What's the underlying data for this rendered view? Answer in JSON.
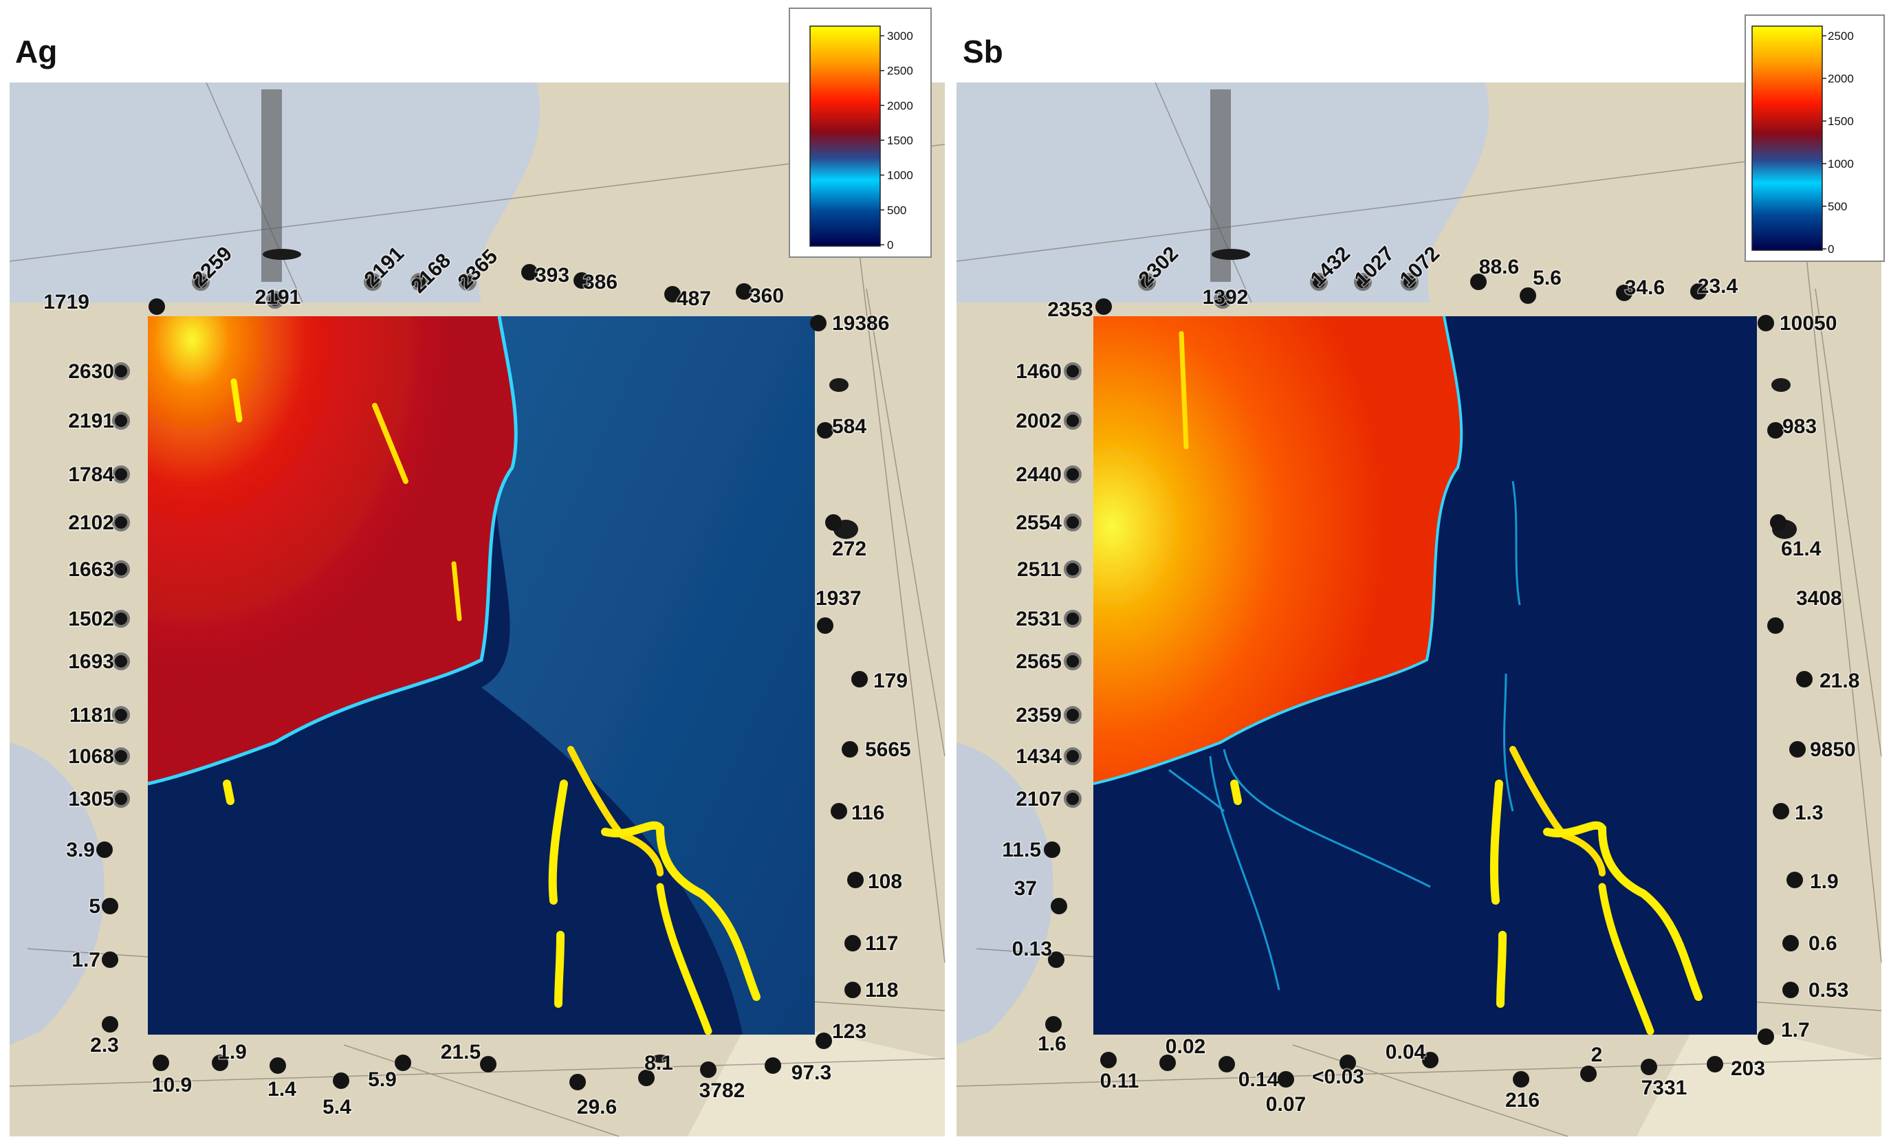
{
  "panels": [
    {
      "id": "ag",
      "title": "Ag",
      "colorbar_ticks": [
        "3000",
        "2500",
        "2000",
        "1500",
        "1000",
        "500",
        "0"
      ],
      "spot_labels": {
        "top": [
          "1719",
          "2259",
          "2191",
          "2191",
          "2168",
          "2365",
          "393",
          "386",
          "487",
          "360"
        ],
        "left": [
          "2630",
          "2191",
          "1784",
          "2102",
          "1663",
          "1502",
          "1693",
          "1181",
          "1068",
          "1305",
          "3.9",
          "5",
          "1.7",
          "2.3"
        ],
        "right": [
          "19386",
          "584",
          "272",
          "1937",
          "179",
          "5665",
          "116",
          "108",
          "117",
          "118",
          "123"
        ],
        "bottom": [
          "10.9",
          "1.9",
          "1.4",
          "5.4",
          "5.9",
          "21.5",
          "29.6",
          "8.1",
          "3782",
          "97.3"
        ]
      }
    },
    {
      "id": "sb",
      "title": "Sb",
      "colorbar_ticks": [
        "2500",
        "2000",
        "1500",
        "1000",
        "500",
        "0"
      ],
      "spot_labels": {
        "top": [
          "2353",
          "2302",
          "1392",
          "1432",
          "1027",
          "1072",
          "88.6",
          "5.6",
          "34.6",
          "23.4"
        ],
        "left": [
          "1460",
          "2002",
          "2440",
          "2554",
          "2511",
          "2531",
          "2565",
          "2359",
          "1434",
          "2107",
          "11.5",
          "37",
          "0.13",
          "1.6"
        ],
        "right": [
          "10050",
          "983",
          "61.4",
          "3408",
          "21.8",
          "9850",
          "1.3",
          "1.9",
          "0.6",
          "0.53",
          "1.7"
        ],
        "bottom": [
          "0.11",
          "0.02",
          "0.14",
          "0.07",
          "<0.03",
          "0.04",
          "216",
          "2",
          "7331",
          "203"
        ]
      }
    }
  ]
}
